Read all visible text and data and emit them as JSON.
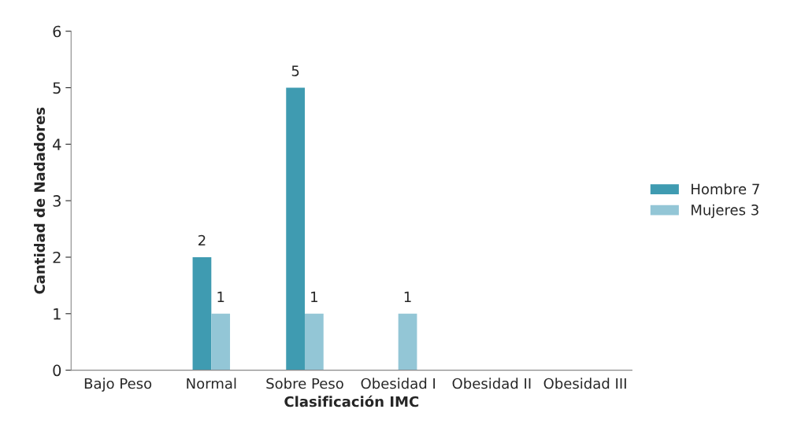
{
  "chart_data": {
    "type": "bar",
    "xlabel": "Clasificación IMC",
    "ylabel": "Cantidad de Nadadores",
    "categories": [
      "Bajo Peso",
      "Normal",
      "Sobre Peso",
      "Obesidad I",
      "Obesidad II",
      "Obesidad III"
    ],
    "series": [
      {
        "name": "Hombre 7",
        "color": "#3f9bb1",
        "values": [
          0,
          2,
          5,
          0,
          0,
          0
        ],
        "value_labels": [
          null,
          "2",
          "5",
          null,
          null,
          null
        ]
      },
      {
        "name": "Mujeres 3",
        "color": "#93c6d6",
        "values": [
          0,
          1,
          1,
          1,
          0,
          0
        ],
        "value_labels": [
          null,
          "1",
          "1",
          "1",
          null,
          null
        ]
      }
    ],
    "ylim": [
      0,
      6
    ],
    "yticks": [
      0,
      1,
      2,
      3,
      4,
      5,
      6
    ],
    "grid": false,
    "legend": "right"
  }
}
